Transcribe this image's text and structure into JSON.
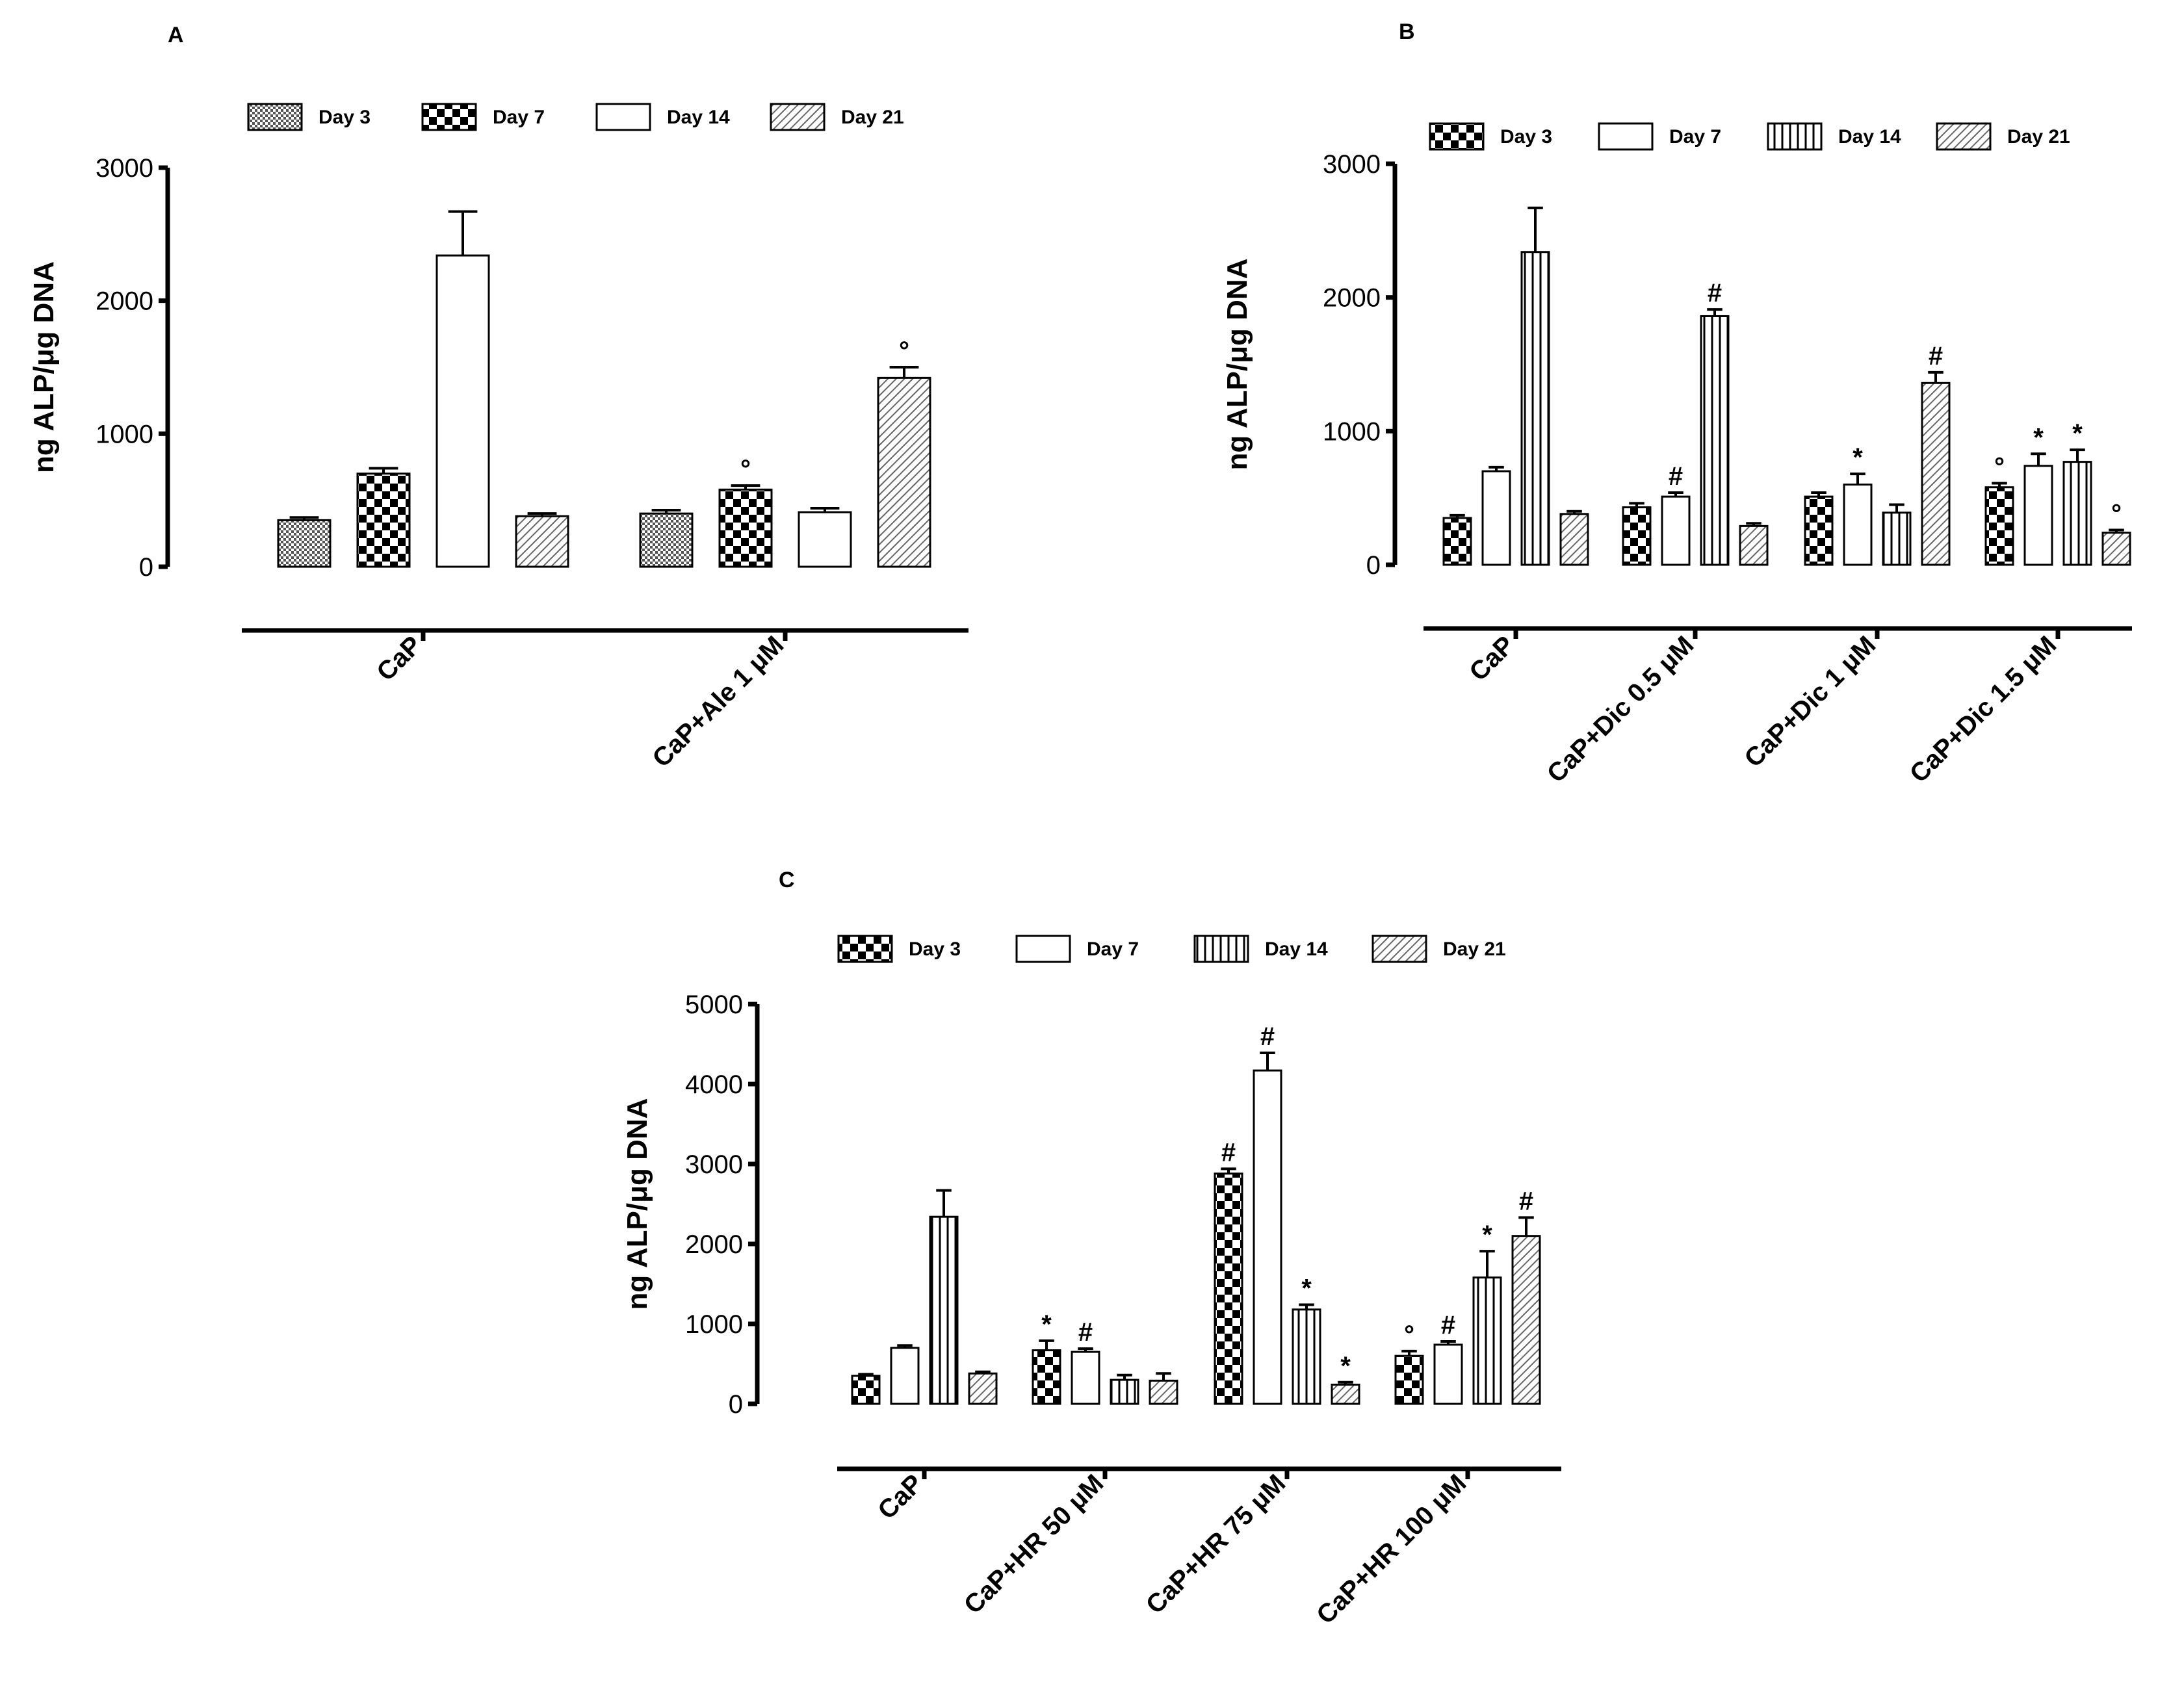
{
  "chart_data": [
    {
      "panel": "A",
      "type": "bar",
      "ylabel": "ng ALP/μg DNA",
      "ylim": [
        0,
        3000
      ],
      "yticks": [
        0,
        1000,
        2000,
        3000
      ],
      "categories": [
        "CaP",
        "CaP+Ale 1 μM"
      ],
      "series": [
        {
          "name": "Day 3",
          "pattern": "dense-check",
          "values": [
            350,
            400
          ],
          "errors": [
            20,
            25
          ],
          "annotations": [
            "",
            ""
          ]
        },
        {
          "name": "Day 7",
          "pattern": "checker",
          "values": [
            700,
            580
          ],
          "errors": [
            40,
            30
          ],
          "annotations": [
            "",
            "°"
          ]
        },
        {
          "name": "Day 14",
          "pattern": "open",
          "values": [
            2340,
            410
          ],
          "errors": [
            330,
            30
          ],
          "annotations": [
            "",
            ""
          ]
        },
        {
          "name": "Day 21",
          "pattern": "diagonal",
          "values": [
            380,
            1420
          ],
          "errors": [
            20,
            80
          ],
          "annotations": [
            "",
            "°"
          ]
        }
      ]
    },
    {
      "panel": "B",
      "type": "bar",
      "ylabel": "ng ALP/μg DNA",
      "ylim": [
        0,
        3000
      ],
      "yticks": [
        0,
        1000,
        2000,
        3000
      ],
      "categories": [
        "CaP",
        "CaP+Dic 0.5 μM",
        "CaP+Dic 1 μM",
        "CaP+Dic 1.5 μM"
      ],
      "series": [
        {
          "name": "Day 3",
          "pattern": "checker",
          "values": [
            350,
            430,
            510,
            580
          ],
          "errors": [
            20,
            30,
            30,
            30
          ],
          "annotations": [
            "",
            "",
            "",
            "°"
          ]
        },
        {
          "name": "Day 7",
          "pattern": "open",
          "values": [
            700,
            510,
            600,
            740
          ],
          "errors": [
            30,
            30,
            80,
            90
          ],
          "annotations": [
            "",
            "#",
            "*",
            "*"
          ]
        },
        {
          "name": "Day 14",
          "pattern": "vertical",
          "values": [
            2340,
            1860,
            390,
            770
          ],
          "errors": [
            330,
            50,
            60,
            90
          ],
          "annotations": [
            "",
            "#",
            "",
            "*"
          ]
        },
        {
          "name": "Day 21",
          "pattern": "diagonal",
          "values": [
            380,
            290,
            1360,
            240
          ],
          "errors": [
            20,
            20,
            80,
            20
          ],
          "annotations": [
            "",
            "",
            "#",
            "°"
          ]
        }
      ]
    },
    {
      "panel": "C",
      "type": "bar",
      "ylabel": "ng ALP/μg DNA",
      "ylim": [
        0,
        5000
      ],
      "yticks": [
        0,
        1000,
        2000,
        3000,
        4000,
        5000
      ],
      "categories": [
        "CaP",
        "CaP+HR 50 μM",
        "CaP+HR 75 μM",
        "CaP+HR 100 μM"
      ],
      "series": [
        {
          "name": "Day 3",
          "pattern": "checker",
          "values": [
            350,
            670,
            2880,
            600
          ],
          "errors": [
            20,
            120,
            60,
            60
          ],
          "annotations": [
            "",
            "*",
            "#",
            "°"
          ]
        },
        {
          "name": "Day 7",
          "pattern": "open",
          "values": [
            700,
            650,
            4170,
            740
          ],
          "errors": [
            30,
            40,
            220,
            40
          ],
          "annotations": [
            "",
            "#",
            "#",
            "#"
          ]
        },
        {
          "name": "Day 14",
          "pattern": "vertical",
          "values": [
            2340,
            300,
            1180,
            1580
          ],
          "errors": [
            330,
            60,
            60,
            330
          ],
          "annotations": [
            "",
            "",
            "*",
            "*"
          ]
        },
        {
          "name": "Day 21",
          "pattern": "diagonal",
          "values": [
            380,
            290,
            240,
            2100
          ],
          "errors": [
            20,
            90,
            30,
            230
          ],
          "annotations": [
            "",
            "",
            "*",
            "#"
          ]
        }
      ]
    }
  ]
}
